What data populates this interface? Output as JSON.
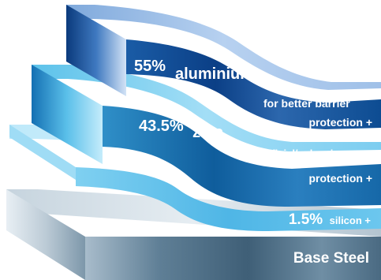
{
  "layers": [
    {
      "key": "aluminium",
      "label_value": "55%",
      "label_material": "aluminium",
      "label_desc_line1": "for better barrier",
      "label_desc_line2": "protection +"
    },
    {
      "key": "zinc",
      "label_value": "43.5%",
      "label_material": "zinc",
      "label_desc_line1": "for sacrificial/galvanic",
      "label_desc_line2": "protection +"
    },
    {
      "key": "silicon",
      "label_value": "1.5%",
      "label_desc": "silicon +"
    },
    {
      "key": "base",
      "label": "Base Steel"
    }
  ],
  "colors": {
    "aluminium_front_dark": "#0b3f86",
    "aluminium_front_light": "#6f9dd6",
    "aluminium_top": "#a9c8ec",
    "zinc_front_dark": "#0f5d9c",
    "zinc_front_light": "#4ab5e0",
    "zinc_top": "#8fd7f3",
    "silicon_front": "#6cc7ee",
    "silicon_top": "#c8ecfb",
    "steel_front_dark": "#4f6f86",
    "steel_front_light": "#dfe8ee",
    "steel_top": "#b8c7d2"
  }
}
